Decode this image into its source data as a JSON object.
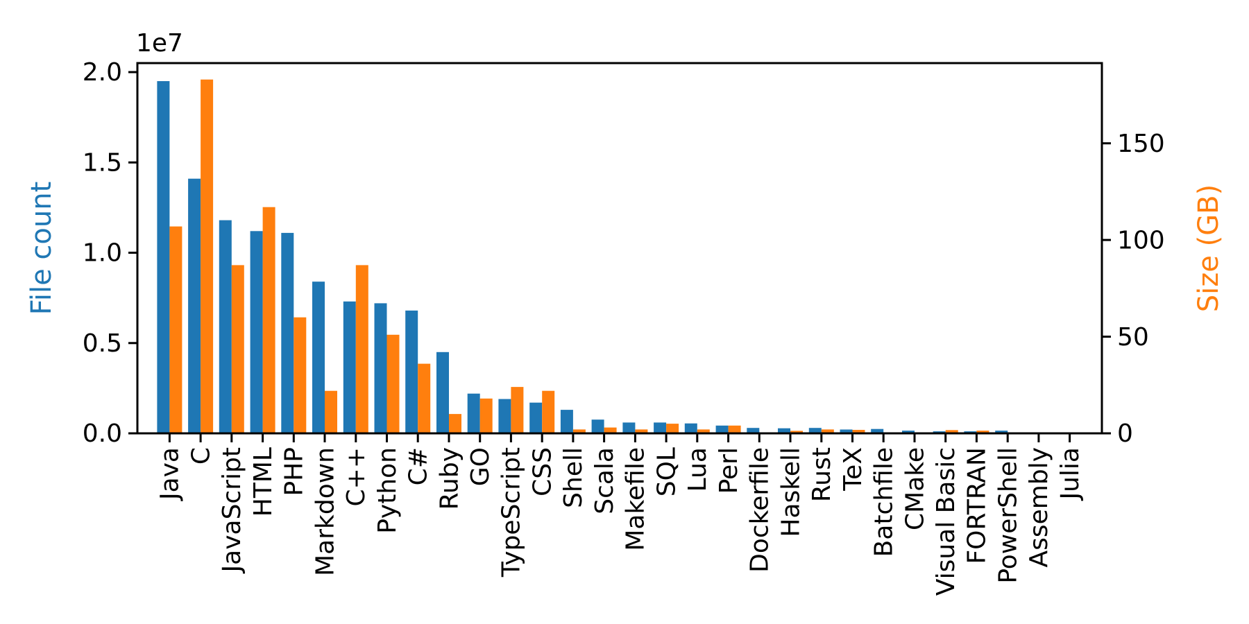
{
  "chart_data": {
    "type": "bar",
    "title": "",
    "categories": [
      "Java",
      "C",
      "JavaScript",
      "HTML",
      "PHP",
      "Markdown",
      "C++",
      "Python",
      "C#",
      "Ruby",
      "GO",
      "TypeScript",
      "CSS",
      "Shell",
      "Scala",
      "Makefile",
      "SQL",
      "Lua",
      "Perl",
      "Dockerfile",
      "Haskell",
      "Rust",
      "TeX",
      "Batchfile",
      "CMake",
      "Visual Basic",
      "FORTRAN",
      "PowerShell",
      "Assembly",
      "Julia"
    ],
    "series": [
      {
        "name": "File count",
        "axis": "left",
        "color": "#1f77b4",
        "values": [
          19500000,
          14100000,
          11800000,
          11200000,
          11100000,
          8400000,
          7300000,
          7200000,
          6800000,
          4500000,
          2200000,
          1900000,
          1700000,
          1300000,
          760000,
          600000,
          600000,
          550000,
          430000,
          300000,
          280000,
          300000,
          210000,
          240000,
          150000,
          110000,
          110000,
          150000,
          50000,
          30000
        ]
      },
      {
        "name": "Size (GB)",
        "axis": "right",
        "color": "#ff7f0e",
        "values": [
          107,
          183,
          87,
          117,
          60,
          22,
          87,
          51,
          36,
          10,
          18,
          24,
          22,
          2,
          3,
          2,
          5,
          2,
          4,
          0.3,
          1.3,
          2,
          1.8,
          0.3,
          0.2,
          1.7,
          1.4,
          0.2,
          0.3,
          0.1
        ]
      }
    ],
    "left_axis": {
      "label": "File count",
      "color": "#1f77b4",
      "offset_text": "1e7",
      "tick_labels": [
        "0.0",
        "0.5",
        "1.0",
        "1.5",
        "2.0"
      ],
      "tick_values": [
        0,
        5000000,
        10000000,
        15000000,
        20000000
      ],
      "range": [
        0,
        20500000
      ]
    },
    "right_axis": {
      "label": "Size (GB)",
      "color": "#ff7f0e",
      "tick_labels": [
        "0",
        "50",
        "100",
        "150"
      ],
      "tick_values": [
        0,
        50,
        100,
        150
      ],
      "range": [
        0,
        191.5
      ]
    },
    "x_axis": {
      "tick_label_rotation": 90
    },
    "grid": false,
    "legend": null
  }
}
